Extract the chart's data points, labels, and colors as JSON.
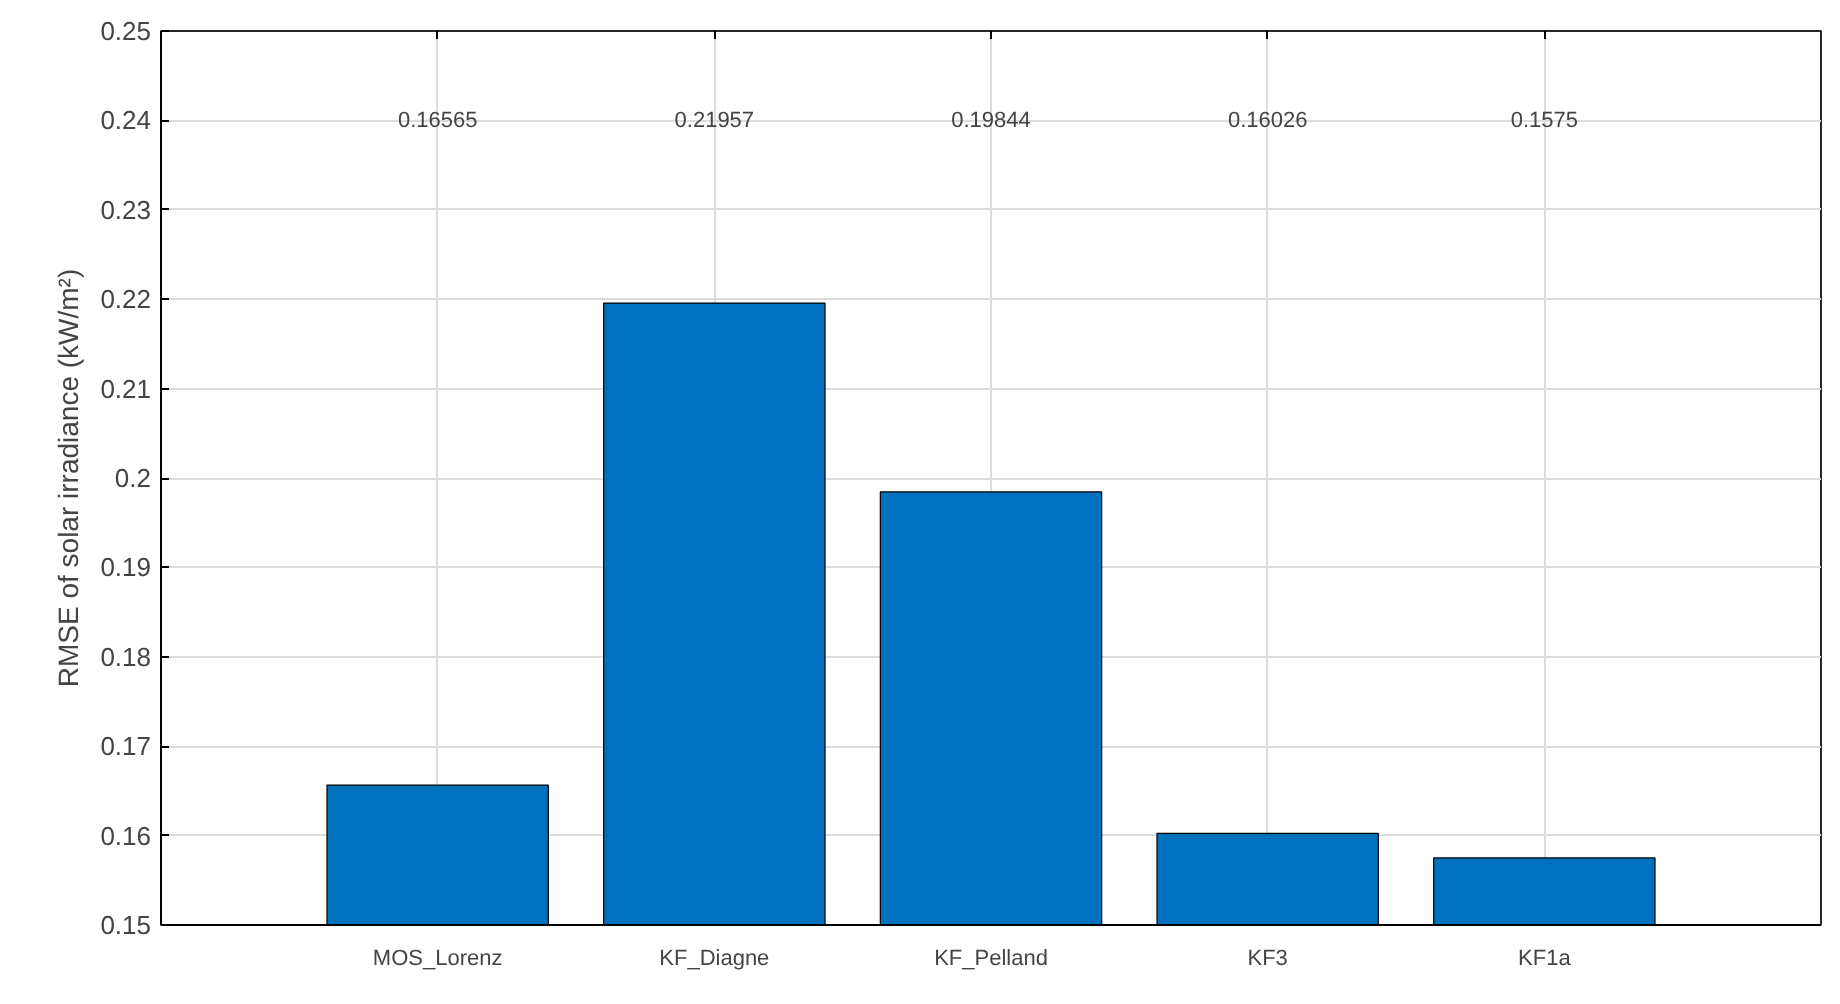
{
  "chart_data": {
    "type": "bar",
    "ylabel": "RMSE of solar irradiance (kW/m²)",
    "categories": [
      "MOS_Lorenz",
      "KF_Diagne",
      "KF_Pelland",
      "KF3",
      "KF1a"
    ],
    "values": [
      0.16565,
      0.21957,
      0.19844,
      0.16026,
      0.1575
    ],
    "color": "#0072bd",
    "ylim": [
      0.15,
      0.25
    ],
    "yticks": [
      0.15,
      0.16,
      0.17,
      0.18,
      0.19,
      0.2,
      0.21,
      0.22,
      0.23,
      0.24,
      0.25
    ],
    "grid": true,
    "annotations": [
      "0.16565",
      "0.21957",
      "0.19844",
      "0.16026",
      "0.1575"
    ]
  }
}
